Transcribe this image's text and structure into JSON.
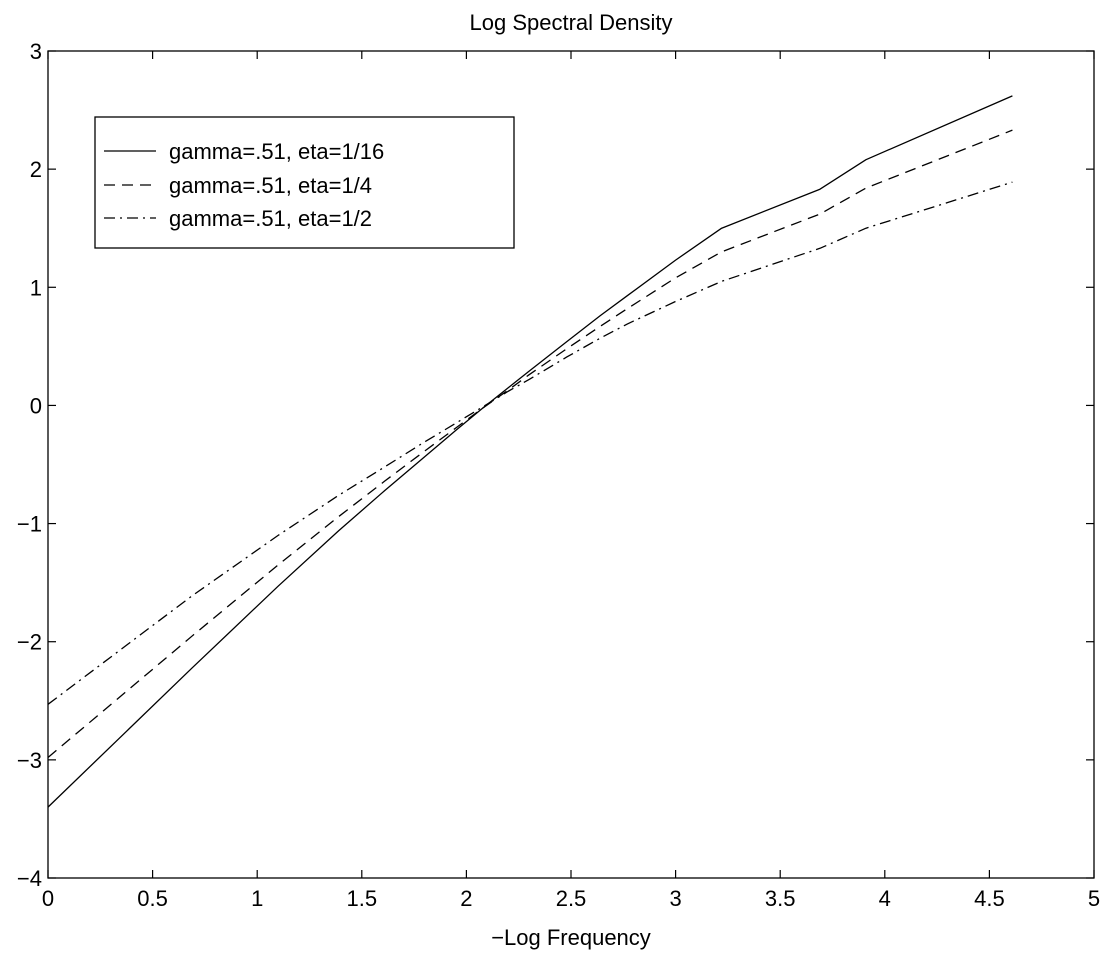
{
  "chart_data": {
    "type": "line",
    "title": "Log Spectral Density",
    "xlabel": "−Log Frequency",
    "ylabel": "",
    "xlim": [
      0,
      5
    ],
    "ylim": [
      -4,
      3
    ],
    "xticks": [
      0,
      0.5,
      1,
      1.5,
      2,
      2.5,
      3,
      3.5,
      4,
      4.5,
      5
    ],
    "xtick_labels": [
      "0",
      "0.5",
      "1",
      "1.5",
      "2",
      "2.5",
      "3",
      "3.5",
      "4",
      "4.5",
      "5"
    ],
    "yticks": [
      -4,
      -3,
      -2,
      -1,
      0,
      1,
      2,
      3
    ],
    "ytick_labels": [
      "−4",
      "−3",
      "−2",
      "−1",
      "0",
      "1",
      "2",
      "3"
    ],
    "grid": false,
    "legend_position": "top-left",
    "line_color": "#000000",
    "series": [
      {
        "name": "gamma=.51, eta=1/16",
        "style": "solid",
        "x": [
          0,
          0.69,
          1.1,
          1.39,
          1.61,
          1.79,
          1.95,
          2.08,
          2.2,
          2.3,
          2.48,
          2.64,
          2.77,
          3.0,
          3.22,
          3.69,
          3.91,
          4.61
        ],
        "y": [
          -3.4,
          -2.22,
          -1.53,
          -1.06,
          -0.72,
          -0.45,
          -0.21,
          -0.02,
          0.15,
          0.29,
          0.54,
          0.76,
          0.93,
          1.23,
          1.5,
          1.83,
          2.08,
          2.62
        ]
      },
      {
        "name": "gamma=.51, eta=1/4",
        "style": "dashed",
        "x": [
          0,
          0.69,
          1.1,
          1.39,
          1.61,
          1.79,
          1.95,
          2.08,
          2.2,
          2.3,
          2.48,
          2.64,
          2.77,
          3.0,
          3.22,
          3.69,
          3.91,
          4.61
        ],
        "y": [
          -2.98,
          -1.95,
          -1.35,
          -0.94,
          -0.64,
          -0.4,
          -0.19,
          -0.02,
          0.13,
          0.26,
          0.48,
          0.67,
          0.82,
          1.08,
          1.3,
          1.62,
          1.84,
          2.33
        ]
      },
      {
        "name": "gamma=.51, eta=1/2",
        "style": "dashdot",
        "x": [
          0,
          0.69,
          1.1,
          1.39,
          1.61,
          1.79,
          1.95,
          2.08,
          2.2,
          2.3,
          2.48,
          2.64,
          2.77,
          3.0,
          3.22,
          3.69,
          3.91,
          4.61
        ],
        "y": [
          -2.53,
          -1.61,
          -1.1,
          -0.76,
          -0.52,
          -0.32,
          -0.15,
          -0.01,
          0.12,
          0.22,
          0.41,
          0.57,
          0.69,
          0.88,
          1.05,
          1.33,
          1.5,
          1.89
        ]
      }
    ]
  }
}
